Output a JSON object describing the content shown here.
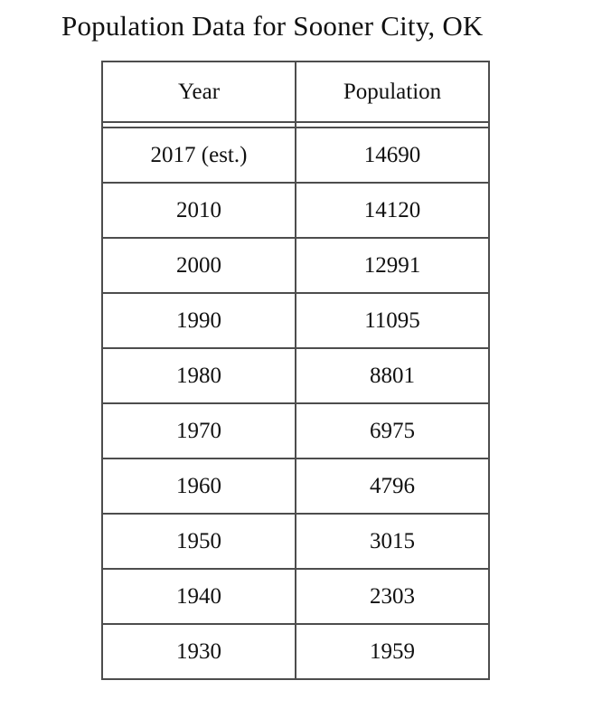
{
  "page": {
    "title": "Population Data for Sooner City, OK"
  },
  "table": {
    "columns": [
      "Year",
      "Population"
    ],
    "rows": [
      [
        "2017 (est.)",
        "14690"
      ],
      [
        "2010",
        "14120"
      ],
      [
        "2000",
        "12991"
      ],
      [
        "1990",
        "11095"
      ],
      [
        "1980",
        "8801"
      ],
      [
        "1970",
        "6975"
      ],
      [
        "1960",
        "4796"
      ],
      [
        "1950",
        "3015"
      ],
      [
        "1940",
        "2303"
      ],
      [
        "1930",
        "1959"
      ]
    ]
  },
  "chart_data": {
    "type": "table",
    "title": "Population Data for Sooner City, OK",
    "columns": [
      "Year",
      "Population"
    ],
    "categories": [
      "2017 (est.)",
      "2010",
      "2000",
      "1990",
      "1980",
      "1970",
      "1960",
      "1950",
      "1940",
      "1930"
    ],
    "values": [
      14690,
      14120,
      12991,
      11095,
      8801,
      6975,
      4796,
      3015,
      2303,
      1959
    ],
    "layout_hints": {
      "header_separator": "double-rule",
      "cell_alignment": "center",
      "grid": "all-borders"
    }
  },
  "colors": {
    "background": "#ffffff",
    "border": "#4d4d4d",
    "text": "#111111"
  }
}
